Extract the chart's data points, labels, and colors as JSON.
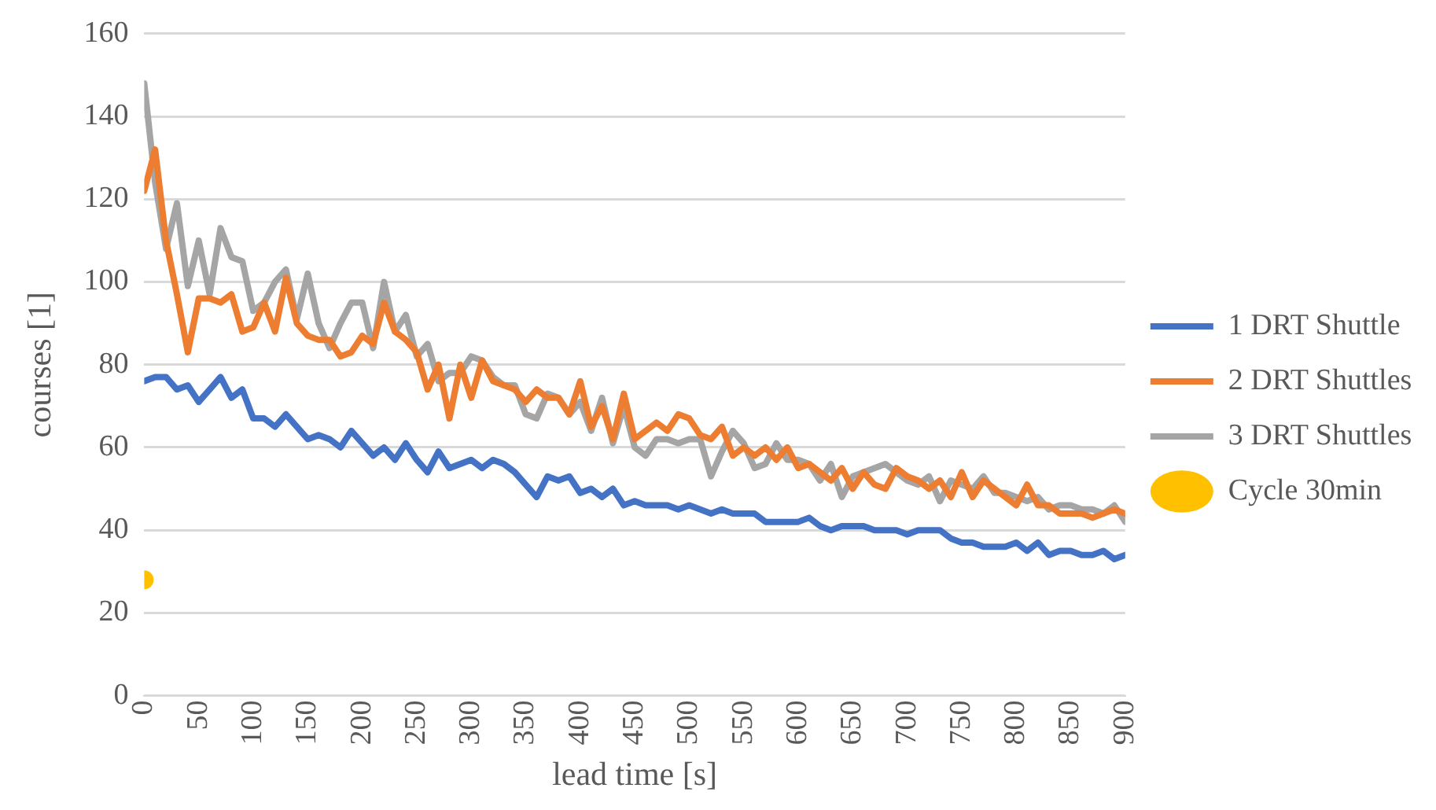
{
  "chart_data": {
    "type": "line",
    "xlabel": "lead time [s]",
    "ylabel": "courses [1]",
    "x": [
      0,
      10,
      20,
      30,
      40,
      50,
      60,
      70,
      80,
      90,
      100,
      110,
      120,
      130,
      140,
      150,
      160,
      170,
      180,
      190,
      200,
      210,
      220,
      230,
      240,
      250,
      260,
      270,
      280,
      290,
      300,
      310,
      320,
      330,
      340,
      350,
      360,
      370,
      380,
      390,
      400,
      410,
      420,
      430,
      440,
      450,
      460,
      470,
      480,
      490,
      500,
      510,
      520,
      530,
      540,
      550,
      560,
      570,
      580,
      590,
      600,
      610,
      620,
      630,
      640,
      650,
      660,
      670,
      680,
      690,
      700,
      710,
      720,
      730,
      740,
      750,
      760,
      770,
      780,
      790,
      800,
      810,
      820,
      830,
      840,
      850,
      860,
      870,
      880,
      890,
      900
    ],
    "series": [
      {
        "name": "1 DRT Shuttle",
        "color": "#4472c4",
        "marker": "none",
        "values": [
          76,
          77,
          77,
          74,
          75,
          71,
          74,
          77,
          72,
          74,
          67,
          67,
          65,
          68,
          65,
          62,
          63,
          62,
          60,
          64,
          61,
          58,
          60,
          57,
          61,
          57,
          54,
          59,
          55,
          56,
          57,
          55,
          57,
          56,
          54,
          51,
          48,
          53,
          52,
          53,
          49,
          50,
          48,
          50,
          46,
          47,
          46,
          46,
          46,
          45,
          46,
          45,
          44,
          45,
          44,
          44,
          44,
          42,
          42,
          42,
          42,
          43,
          41,
          40,
          41,
          41,
          41,
          40,
          40,
          40,
          39,
          40,
          40,
          40,
          38,
          37,
          37,
          36,
          36,
          36,
          37,
          35,
          37,
          34,
          35,
          35,
          34,
          34,
          35,
          33,
          34
        ]
      },
      {
        "name": "2 DRT Shuttles",
        "color": "#ed7d31",
        "marker": "none",
        "values": [
          122,
          132,
          110,
          97,
          83,
          96,
          96,
          95,
          97,
          88,
          89,
          95,
          88,
          101,
          90,
          87,
          86,
          86,
          82,
          83,
          87,
          85,
          95,
          88,
          86,
          83,
          74,
          80,
          67,
          80,
          72,
          81,
          76,
          75,
          74,
          71,
          74,
          72,
          72,
          68,
          76,
          65,
          70,
          62,
          73,
          62,
          64,
          66,
          64,
          68,
          67,
          63,
          62,
          65,
          58,
          60,
          58,
          60,
          57,
          60,
          55,
          56,
          54,
          52,
          55,
          50,
          54,
          51,
          50,
          55,
          53,
          52,
          50,
          52,
          48,
          54,
          48,
          52,
          50,
          48,
          46,
          51,
          46,
          46,
          44,
          44,
          44,
          43,
          44,
          45,
          44
        ]
      },
      {
        "name": "3 DRT Shuttles",
        "color": "#a5a5a5",
        "marker": "none",
        "values": [
          148,
          124,
          108,
          119,
          99,
          110,
          97,
          113,
          106,
          105,
          93,
          95,
          100,
          103,
          91,
          102,
          90,
          84,
          90,
          95,
          95,
          84,
          100,
          88,
          92,
          82,
          85,
          76,
          78,
          78,
          82,
          81,
          77,
          75,
          75,
          68,
          67,
          73,
          72,
          68,
          71,
          64,
          72,
          61,
          70,
          60,
          58,
          62,
          62,
          61,
          62,
          62,
          53,
          59,
          64,
          61,
          55,
          56,
          61,
          57,
          57,
          56,
          52,
          56,
          48,
          53,
          54,
          55,
          56,
          54,
          52,
          51,
          53,
          47,
          52,
          51,
          50,
          53,
          49,
          49,
          48,
          47,
          48,
          45,
          46,
          46,
          45,
          45,
          44,
          46,
          42
        ]
      },
      {
        "name": "Cycle 30min",
        "type": "scatter",
        "color": "#ffc000",
        "marker": "circle",
        "x": [
          0
        ],
        "values": [
          28
        ]
      }
    ],
    "xlim": [
      0,
      900
    ],
    "xticks": [
      0,
      50,
      100,
      150,
      200,
      250,
      300,
      350,
      400,
      450,
      500,
      550,
      600,
      650,
      700,
      750,
      800,
      850,
      900
    ],
    "ylim": [
      0,
      160
    ],
    "yticks": [
      0,
      20,
      40,
      60,
      80,
      100,
      120,
      140,
      160
    ],
    "grid": "y",
    "legend": "right"
  }
}
